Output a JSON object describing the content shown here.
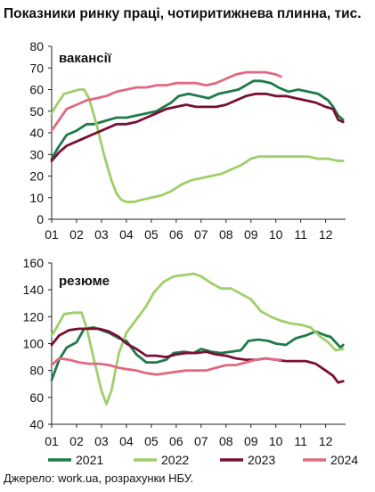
{
  "title": "Показники ринку праці, чотиритижнева плинна, тис.",
  "source": "Джерело: work.ua, розрахунки НБУ.",
  "colors": {
    "2021": "#1f7a4a",
    "2022": "#9fcf6a",
    "2023": "#7a0f35",
    "2024": "#e06a80"
  },
  "chart_data": [
    {
      "type": "line",
      "panel_label": "вакансії",
      "ylim": [
        0,
        80
      ],
      "yticks": [
        0,
        10,
        20,
        30,
        40,
        50,
        60,
        70,
        80
      ],
      "x_tick_labels": [
        "01",
        "02",
        "03",
        "04",
        "05",
        "06",
        "07",
        "08",
        "09",
        "10",
        "11",
        "12"
      ],
      "grid": false,
      "series": [
        {
          "name": "2021",
          "values": [
            [
              1,
              28
            ],
            [
              1.25,
              33
            ],
            [
              1.6,
              39
            ],
            [
              2,
              41
            ],
            [
              2.4,
              44
            ],
            [
              2.7,
              44
            ],
            [
              3,
              45
            ],
            [
              3.3,
              46
            ],
            [
              3.6,
              47
            ],
            [
              4,
              47
            ],
            [
              4.4,
              48
            ],
            [
              4.8,
              49
            ],
            [
              5.2,
              50
            ],
            [
              5.5,
              52
            ],
            [
              5.8,
              54
            ],
            [
              6.1,
              57
            ],
            [
              6.5,
              58
            ],
            [
              6.9,
              57
            ],
            [
              7.3,
              56
            ],
            [
              7.7,
              58
            ],
            [
              8.1,
              59
            ],
            [
              8.5,
              60
            ],
            [
              8.8,
              62
            ],
            [
              9.1,
              64
            ],
            [
              9.4,
              64
            ],
            [
              9.8,
              63
            ],
            [
              10.1,
              61
            ],
            [
              10.5,
              59
            ],
            [
              10.9,
              60
            ],
            [
              11.3,
              59
            ],
            [
              11.7,
              58
            ],
            [
              12.1,
              55
            ],
            [
              12.3,
              52
            ],
            [
              12.5,
              48
            ],
            [
              12.7,
              46
            ]
          ]
        },
        {
          "name": "2022",
          "values": [
            [
              1,
              49
            ],
            [
              1.2,
              53
            ],
            [
              1.5,
              58
            ],
            [
              1.8,
              59
            ],
            [
              2.1,
              60
            ],
            [
              2.3,
              60
            ],
            [
              2.5,
              56
            ],
            [
              2.8,
              44
            ],
            [
              3.1,
              30
            ],
            [
              3.4,
              18
            ],
            [
              3.6,
              12
            ],
            [
              3.8,
              9
            ],
            [
              4,
              8
            ],
            [
              4.3,
              8
            ],
            [
              4.6,
              9
            ],
            [
              5,
              10
            ],
            [
              5.4,
              11
            ],
            [
              5.8,
              13
            ],
            [
              6.2,
              16
            ],
            [
              6.6,
              18
            ],
            [
              7,
              19
            ],
            [
              7.4,
              20
            ],
            [
              7.8,
              21
            ],
            [
              8.2,
              23
            ],
            [
              8.6,
              25
            ],
            [
              9,
              28
            ],
            [
              9.3,
              29
            ],
            [
              9.7,
              29
            ],
            [
              10.1,
              29
            ],
            [
              10.5,
              29
            ],
            [
              10.9,
              29
            ],
            [
              11.3,
              29
            ],
            [
              11.7,
              28
            ],
            [
              12.1,
              28
            ],
            [
              12.5,
              27
            ],
            [
              12.7,
              27
            ]
          ]
        },
        {
          "name": "2023",
          "values": [
            [
              1,
              27
            ],
            [
              1.3,
              31
            ],
            [
              1.6,
              34
            ],
            [
              2,
              36
            ],
            [
              2.4,
              38
            ],
            [
              2.8,
              40
            ],
            [
              3.2,
              42
            ],
            [
              3.6,
              44
            ],
            [
              4,
              44
            ],
            [
              4.4,
              45
            ],
            [
              4.8,
              47
            ],
            [
              5.2,
              49
            ],
            [
              5.6,
              51
            ],
            [
              6,
              52
            ],
            [
              6.4,
              53
            ],
            [
              6.8,
              52
            ],
            [
              7.2,
              52
            ],
            [
              7.6,
              52
            ],
            [
              8,
              53
            ],
            [
              8.4,
              55
            ],
            [
              8.8,
              57
            ],
            [
              9.2,
              58
            ],
            [
              9.6,
              58
            ],
            [
              10,
              57
            ],
            [
              10.4,
              57
            ],
            [
              10.8,
              56
            ],
            [
              11.2,
              55
            ],
            [
              11.6,
              54
            ],
            [
              12,
              52
            ],
            [
              12.3,
              51
            ],
            [
              12.5,
              46
            ],
            [
              12.7,
              45
            ]
          ]
        },
        {
          "name": "2024",
          "values": [
            [
              1,
              41
            ],
            [
              1.3,
              46
            ],
            [
              1.6,
              51
            ],
            [
              2,
              53
            ],
            [
              2.4,
              55
            ],
            [
              2.8,
              56
            ],
            [
              3.2,
              57
            ],
            [
              3.6,
              59
            ],
            [
              4,
              60
            ],
            [
              4.4,
              61
            ],
            [
              4.8,
              61
            ],
            [
              5.2,
              62
            ],
            [
              5.6,
              62
            ],
            [
              6,
              63
            ],
            [
              6.4,
              63
            ],
            [
              6.8,
              63
            ],
            [
              7.2,
              62
            ],
            [
              7.6,
              63
            ],
            [
              8,
              65
            ],
            [
              8.4,
              67
            ],
            [
              8.8,
              68
            ],
            [
              9.2,
              68
            ],
            [
              9.6,
              68
            ],
            [
              10,
              67
            ],
            [
              10.2,
              66
            ]
          ]
        }
      ]
    },
    {
      "type": "line",
      "panel_label": "резюме",
      "ylim": [
        40,
        160
      ],
      "yticks": [
        40,
        60,
        80,
        100,
        120,
        140,
        160
      ],
      "x_tick_labels": [
        "01",
        "02",
        "03",
        "04",
        "05",
        "06",
        "07",
        "08",
        "09",
        "10",
        "11",
        "12"
      ],
      "grid": false,
      "series": [
        {
          "name": "2021",
          "values": [
            [
              1,
              73
            ],
            [
              1.3,
              88
            ],
            [
              1.6,
              97
            ],
            [
              2,
              101
            ],
            [
              2.3,
              111
            ],
            [
              2.7,
              112
            ],
            [
              3,
              110
            ],
            [
              3.3,
              108
            ],
            [
              3.7,
              104
            ],
            [
              4,
              102
            ],
            [
              4.4,
              92
            ],
            [
              4.8,
              86
            ],
            [
              5.2,
              86
            ],
            [
              5.6,
              88
            ],
            [
              5.9,
              93
            ],
            [
              6.3,
              94
            ],
            [
              6.7,
              93
            ],
            [
              7,
              96
            ],
            [
              7.4,
              94
            ],
            [
              7.8,
              93
            ],
            [
              8.2,
              94
            ],
            [
              8.6,
              95
            ],
            [
              8.9,
              102
            ],
            [
              9.3,
              103
            ],
            [
              9.7,
              102
            ],
            [
              10,
              100
            ],
            [
              10.4,
              99
            ],
            [
              10.8,
              104
            ],
            [
              11.2,
              106
            ],
            [
              11.6,
              109
            ],
            [
              12,
              106
            ],
            [
              12.2,
              105
            ],
            [
              12.4,
              101
            ],
            [
              12.6,
              97
            ],
            [
              12.7,
              99
            ]
          ]
        },
        {
          "name": "2022",
          "values": [
            [
              1,
              106
            ],
            [
              1.2,
              112
            ],
            [
              1.5,
              122
            ],
            [
              1.9,
              123
            ],
            [
              2.2,
              123
            ],
            [
              2.4,
              112
            ],
            [
              2.7,
              88
            ],
            [
              3,
              65
            ],
            [
              3.2,
              55
            ],
            [
              3.4,
              65
            ],
            [
              3.7,
              93
            ],
            [
              4,
              108
            ],
            [
              4.4,
              118
            ],
            [
              4.8,
              128
            ],
            [
              5.1,
              138
            ],
            [
              5.5,
              146
            ],
            [
              5.9,
              150
            ],
            [
              6.3,
              151
            ],
            [
              6.7,
              152
            ],
            [
              7,
              150
            ],
            [
              7.4,
              145
            ],
            [
              7.8,
              141
            ],
            [
              8.2,
              141
            ],
            [
              8.6,
              137
            ],
            [
              9,
              133
            ],
            [
              9.4,
              124
            ],
            [
              9.8,
              120
            ],
            [
              10.2,
              117
            ],
            [
              10.6,
              115
            ],
            [
              11,
              114
            ],
            [
              11.4,
              112
            ],
            [
              11.8,
              105
            ],
            [
              12.1,
              101
            ],
            [
              12.4,
              95
            ],
            [
              12.7,
              96
            ]
          ]
        },
        {
          "name": "2023",
          "values": [
            [
              1,
              99
            ],
            [
              1.3,
              106
            ],
            [
              1.7,
              110
            ],
            [
              2.1,
              111
            ],
            [
              2.5,
              111
            ],
            [
              2.9,
              111
            ],
            [
              3.3,
              109
            ],
            [
              3.7,
              105
            ],
            [
              4,
              100
            ],
            [
              4.4,
              96
            ],
            [
              4.8,
              91
            ],
            [
              5.2,
              91
            ],
            [
              5.6,
              90
            ],
            [
              6,
              92
            ],
            [
              6.4,
              93
            ],
            [
              6.8,
              93
            ],
            [
              7.2,
              94
            ],
            [
              7.6,
              92
            ],
            [
              8,
              91
            ],
            [
              8.4,
              89
            ],
            [
              8.8,
              88
            ],
            [
              9.2,
              88
            ],
            [
              9.6,
              89
            ],
            [
              10,
              88
            ],
            [
              10.4,
              87
            ],
            [
              10.8,
              87
            ],
            [
              11.2,
              87
            ],
            [
              11.6,
              85
            ],
            [
              12,
              80
            ],
            [
              12.3,
              76
            ],
            [
              12.5,
              71
            ],
            [
              12.7,
              72
            ]
          ]
        },
        {
          "name": "2024",
          "values": [
            [
              1,
              84
            ],
            [
              1.3,
              89
            ],
            [
              1.7,
              88
            ],
            [
              2.1,
              86
            ],
            [
              2.5,
              85
            ],
            [
              2.9,
              85
            ],
            [
              3.3,
              84
            ],
            [
              3.7,
              82
            ],
            [
              4,
              81
            ],
            [
              4.4,
              80
            ],
            [
              4.8,
              78
            ],
            [
              5.2,
              77
            ],
            [
              5.6,
              78
            ],
            [
              6,
              79
            ],
            [
              6.4,
              80
            ],
            [
              6.8,
              80
            ],
            [
              7.2,
              80
            ],
            [
              7.6,
              82
            ],
            [
              8,
              84
            ],
            [
              8.4,
              84
            ],
            [
              8.8,
              86
            ],
            [
              9.2,
              88
            ],
            [
              9.6,
              89
            ],
            [
              10,
              88
            ],
            [
              10.2,
              88
            ]
          ]
        }
      ]
    }
  ],
  "legend": [
    "2021",
    "2022",
    "2023",
    "2024"
  ]
}
